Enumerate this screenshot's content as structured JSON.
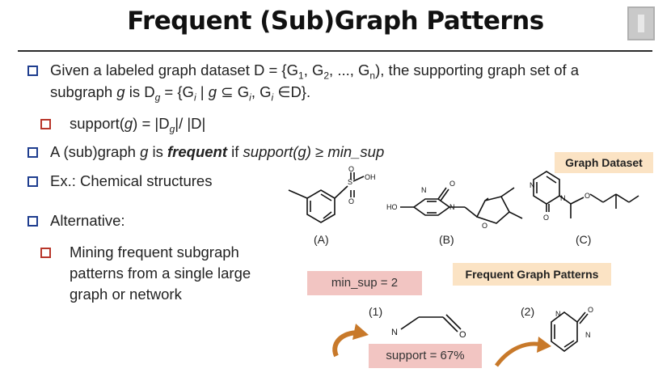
{
  "slide": {
    "title": "Frequent (Sub)Graph Patterns",
    "bullets": {
      "b1_line1_a": "Given a labeled graph dataset D = {G",
      "b1_sub1": "1",
      "b1_mid1": ", G",
      "b1_sub2": "2",
      "b1_mid2": ", ..., G",
      "b1_subn": "n",
      "b1_line1_end": "), the supporting graph set of a",
      "b1_line2_a": "subgraph ",
      "b1_g": "g",
      "b1_line2_b": " is D",
      "b1_subg": "g",
      "b1_line2_c": " = {G",
      "b1_subi": "i",
      "b1_line2_d": " | ",
      "b1_g2": "g",
      "b1_line2_e": " ⊆ G",
      "b1_subi2": "i",
      "b1_line2_f": ", G",
      "b1_subi3": "i",
      "b1_line2_g": " ∈D}.",
      "sub1_a": "support(",
      "sub1_g": "g",
      "sub1_b": ") = |D",
      "sub1_subg": "g",
      "sub1_c": "|/ |D|",
      "b2_a": "A (sub)graph ",
      "b2_g": "g",
      "b2_b": " is ",
      "b2_freq": "frequent",
      "b2_c": " if ",
      "b2_sup": "support(g)",
      "b2_d": " ≥ ",
      "b2_min": "min_sup",
      "b3": "Ex.: Chemical structures",
      "b4": "Alternative:",
      "sub2_l1": "Mining frequent subgraph",
      "sub2_l2": "patterns from a single large",
      "sub2_l3": "graph or network"
    },
    "graph_dataset_label": "Graph Dataset",
    "frequent_patterns_label": "Frequent Graph Patterns",
    "min_sup_label": "min_sup = 2",
    "support_label": "support = 67%",
    "molecules": {
      "a_caption": "(A)",
      "b_caption": "(B)",
      "c_caption": "(C)",
      "a_s": "S",
      "a_o1": "O",
      "a_o2": "O",
      "a_oh": "OH",
      "b_ho": "HO",
      "b_n1": "N",
      "b_n2": "N",
      "b_o1": "O",
      "b_o2": "O",
      "c_n1": "N",
      "c_n2": "N",
      "c_o1": "O",
      "c_o2": "O",
      "p1_caption": "(1)",
      "p1_n": "N",
      "p1_o": "O",
      "p2_caption": "(2)",
      "p2_n1": "N",
      "p2_n2": "N",
      "p2_o": "O"
    },
    "colors": {
      "bullet_blue": "#1f3e8f",
      "bullet_red": "#b8362a",
      "label_box": "#fbe3c4",
      "pink_box": "#f2c5c2",
      "arrow": "#c8792a"
    },
    "icons": [
      "square-bullet-icon",
      "curved-arrow-icon"
    ]
  }
}
